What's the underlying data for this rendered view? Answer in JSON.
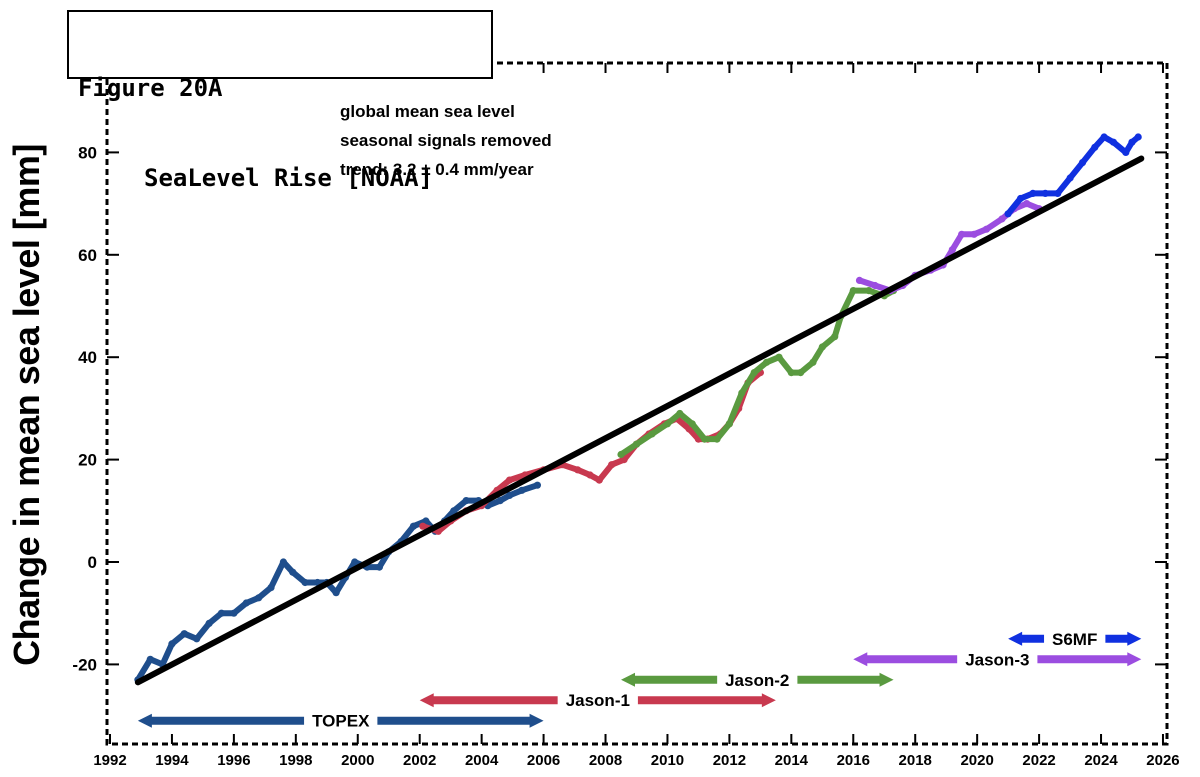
{
  "figure": {
    "label": "Figure 20A",
    "subtitle": "SeaLevel Rise [NOAA]"
  },
  "notes": [
    "global mean sea level",
    "seasonal signals removed",
    "trend:  3.2 ± 0.4 mm/year"
  ],
  "chart_data": {
    "type": "line",
    "title": "",
    "xlabel": "",
    "ylabel": "Change in mean sea level [mm]",
    "xlim": [
      1992,
      2026
    ],
    "ylim": [
      -35,
      97
    ],
    "x_ticks": [
      1992,
      1994,
      1996,
      1998,
      2000,
      2002,
      2004,
      2006,
      2008,
      2010,
      2012,
      2014,
      2016,
      2018,
      2020,
      2022,
      2024,
      2026
    ],
    "y_ticks": [
      -20,
      0,
      20,
      40,
      60,
      80
    ],
    "grid": false,
    "series": [
      {
        "name": "TOPEX",
        "color": "#1f4e8c",
        "points": [
          [
            1992.9,
            -23
          ],
          [
            1993.3,
            -19
          ],
          [
            1993.7,
            -20
          ],
          [
            1994.0,
            -16
          ],
          [
            1994.4,
            -14
          ],
          [
            1994.8,
            -15
          ],
          [
            1995.2,
            -12
          ],
          [
            1995.6,
            -10
          ],
          [
            1996.0,
            -10
          ],
          [
            1996.4,
            -8
          ],
          [
            1996.8,
            -7
          ],
          [
            1997.2,
            -5
          ],
          [
            1997.6,
            0
          ],
          [
            1997.9,
            -2
          ],
          [
            1998.3,
            -4
          ],
          [
            1998.7,
            -4
          ],
          [
            1999.0,
            -4
          ],
          [
            1999.3,
            -6
          ],
          [
            1999.6,
            -3
          ],
          [
            1999.9,
            0
          ],
          [
            2000.3,
            -1
          ],
          [
            2000.7,
            -1
          ],
          [
            2001.0,
            2
          ],
          [
            2001.4,
            4
          ],
          [
            2001.8,
            7
          ],
          [
            2002.2,
            8
          ],
          [
            2002.5,
            6
          ],
          [
            2002.8,
            8
          ],
          [
            2003.1,
            10
          ],
          [
            2003.5,
            12
          ],
          [
            2003.9,
            12
          ],
          [
            2004.2,
            11
          ],
          [
            2004.6,
            12
          ],
          [
            2004.9,
            13
          ],
          [
            2005.3,
            14
          ],
          [
            2005.8,
            15
          ]
        ]
      },
      {
        "name": "Jason-1",
        "color": "#c8394f",
        "points": [
          [
            2002.1,
            7
          ],
          [
            2002.6,
            6
          ],
          [
            2003.0,
            8
          ],
          [
            2003.5,
            10
          ],
          [
            2004.0,
            11
          ],
          [
            2004.5,
            14
          ],
          [
            2004.9,
            16
          ],
          [
            2005.4,
            17
          ],
          [
            2006.0,
            18
          ],
          [
            2006.6,
            19
          ],
          [
            2007.1,
            18
          ],
          [
            2007.5,
            17
          ],
          [
            2007.8,
            16
          ],
          [
            2008.2,
            19
          ],
          [
            2008.6,
            20
          ],
          [
            2009.0,
            23
          ],
          [
            2009.4,
            25
          ],
          [
            2009.9,
            27
          ],
          [
            2010.3,
            28
          ],
          [
            2010.7,
            26
          ],
          [
            2011.0,
            24
          ],
          [
            2011.3,
            24
          ],
          [
            2011.7,
            25
          ],
          [
            2012.0,
            27
          ],
          [
            2012.3,
            30
          ],
          [
            2012.6,
            35
          ],
          [
            2013.0,
            37
          ]
        ]
      },
      {
        "name": "Jason-2",
        "color": "#5a9a40",
        "points": [
          [
            2008.5,
            21
          ],
          [
            2009.0,
            23
          ],
          [
            2009.5,
            25
          ],
          [
            2010.0,
            27
          ],
          [
            2010.4,
            29
          ],
          [
            2010.8,
            27
          ],
          [
            2011.2,
            24
          ],
          [
            2011.6,
            24
          ],
          [
            2012.0,
            27
          ],
          [
            2012.4,
            33
          ],
          [
            2012.8,
            37
          ],
          [
            2013.2,
            39
          ],
          [
            2013.6,
            40
          ],
          [
            2014.0,
            37
          ],
          [
            2014.3,
            37
          ],
          [
            2014.7,
            39
          ],
          [
            2015.0,
            42
          ],
          [
            2015.4,
            44
          ],
          [
            2015.6,
            48
          ],
          [
            2016.0,
            53
          ],
          [
            2016.5,
            53
          ],
          [
            2017.0,
            52
          ],
          [
            2017.3,
            53
          ]
        ]
      },
      {
        "name": "Jason-3",
        "color": "#9b4de0",
        "points": [
          [
            2016.2,
            55
          ],
          [
            2016.7,
            54
          ],
          [
            2017.2,
            53
          ],
          [
            2017.6,
            54
          ],
          [
            2018.0,
            56
          ],
          [
            2018.5,
            57
          ],
          [
            2018.9,
            58
          ],
          [
            2019.2,
            61
          ],
          [
            2019.5,
            64
          ],
          [
            2019.9,
            64
          ],
          [
            2020.3,
            65
          ],
          [
            2020.8,
            67
          ],
          [
            2021.2,
            69
          ],
          [
            2021.6,
            70
          ],
          [
            2022.0,
            69
          ]
        ]
      },
      {
        "name": "S6MF",
        "color": "#1030e0",
        "points": [
          [
            2021.0,
            68
          ],
          [
            2021.4,
            71
          ],
          [
            2021.8,
            72
          ],
          [
            2022.2,
            72
          ],
          [
            2022.6,
            72
          ],
          [
            2023.0,
            75
          ],
          [
            2023.4,
            78
          ],
          [
            2023.8,
            81
          ],
          [
            2024.1,
            83
          ],
          [
            2024.4,
            82
          ],
          [
            2024.8,
            80
          ],
          [
            2025.0,
            82
          ],
          [
            2025.2,
            83
          ]
        ]
      }
    ],
    "trend": {
      "x": [
        1992.9,
        2025.3
      ],
      "y": [
        -23.5,
        78.8
      ],
      "color": "#000000"
    },
    "missions": [
      {
        "name": "TOPEX",
        "start": 1992.9,
        "end": 2006.0,
        "y": -31,
        "color": "#1f4e8c"
      },
      {
        "name": "Jason-1",
        "start": 2002.0,
        "end": 2013.5,
        "y": -27,
        "color": "#c8394f"
      },
      {
        "name": "Jason-2",
        "start": 2008.5,
        "end": 2017.3,
        "y": -23,
        "color": "#5a9a40"
      },
      {
        "name": "Jason-3",
        "start": 2016.0,
        "end": 2025.3,
        "y": -19,
        "color": "#9b4de0"
      },
      {
        "name": "S6MF",
        "start": 2021.0,
        "end": 2025.3,
        "y": -15,
        "color": "#1030e0"
      }
    ]
  }
}
